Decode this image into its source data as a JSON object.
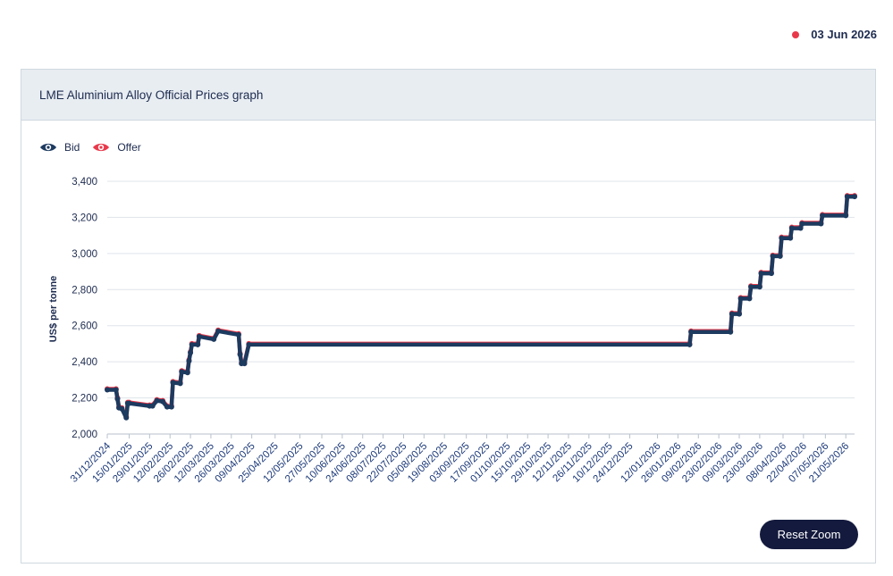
{
  "header_date": {
    "label": "03 Jun 2026",
    "dot_color": "#e8394a"
  },
  "card": {
    "title": "LME Aluminium Alloy Official Prices graph"
  },
  "legend": [
    {
      "label": "Bid",
      "icon": "eye-icon",
      "color": "#1d3a5f"
    },
    {
      "label": "Offer",
      "icon": "eye-icon",
      "color": "#e8394a"
    }
  ],
  "reset_zoom_label": "Reset Zoom",
  "chart_data": {
    "type": "line",
    "title": "",
    "xlabel": "",
    "ylabel": "US$ per tonne",
    "ylim": [
      2000,
      3400
    ],
    "yticks": [
      2000,
      2200,
      2400,
      2600,
      2800,
      3000,
      3200,
      3400
    ],
    "ytick_labels": [
      "2,000",
      "2,200",
      "2,400",
      "2,600",
      "2,800",
      "3,000",
      "3,200",
      "3,400"
    ],
    "x_tick_labels": [
      "31/12/2024",
      "15/01/2025",
      "29/01/2025",
      "12/02/2025",
      "26/02/2025",
      "12/03/2025",
      "26/03/2025",
      "09/04/2025",
      "25/04/2025",
      "12/05/2025",
      "27/05/2025",
      "10/06/2025",
      "24/06/2025",
      "08/07/2025",
      "22/07/2025",
      "05/08/2025",
      "19/08/2025",
      "03/09/2025",
      "17/09/2025",
      "01/10/2025",
      "15/10/2025",
      "29/10/2025",
      "12/11/2025",
      "26/11/2025",
      "10/12/2025",
      "24/12/2025",
      "12/01/2026",
      "26/01/2026",
      "09/02/2026",
      "23/02/2026",
      "09/03/2026",
      "23/03/2026",
      "08/04/2026",
      "22/04/2026",
      "07/05/2026",
      "21/05/2026"
    ],
    "grid": true,
    "legend_position": "top-left",
    "series": [
      {
        "name": "Bid",
        "color": "#1d3a5f",
        "points": [
          [
            "31/12/2024",
            2245
          ],
          [
            "06/01/2025",
            2245
          ],
          [
            "07/01/2025",
            2195
          ],
          [
            "08/01/2025",
            2145
          ],
          [
            "10/01/2025",
            2140
          ],
          [
            "13/01/2025",
            2090
          ],
          [
            "14/01/2025",
            2170
          ],
          [
            "15/01/2025",
            2170
          ],
          [
            "29/01/2025",
            2155
          ],
          [
            "31/01/2025",
            2155
          ],
          [
            "03/02/2025",
            2185
          ],
          [
            "07/02/2025",
            2180
          ],
          [
            "10/02/2025",
            2150
          ],
          [
            "13/02/2025",
            2150
          ],
          [
            "14/02/2025",
            2285
          ],
          [
            "19/02/2025",
            2280
          ],
          [
            "20/02/2025",
            2345
          ],
          [
            "24/02/2025",
            2340
          ],
          [
            "25/02/2025",
            2405
          ],
          [
            "26/02/2025",
            2450
          ],
          [
            "27/02/2025",
            2495
          ],
          [
            "03/03/2025",
            2495
          ],
          [
            "04/03/2025",
            2540
          ],
          [
            "14/03/2025",
            2525
          ],
          [
            "17/03/2025",
            2570
          ],
          [
            "31/03/2025",
            2550
          ],
          [
            "01/04/2025",
            2440
          ],
          [
            "02/04/2025",
            2390
          ],
          [
            "04/04/2025",
            2390
          ],
          [
            "07/04/2025",
            2495
          ],
          [
            "03/02/2026",
            2495
          ],
          [
            "04/02/2026",
            2565
          ],
          [
            "03/03/2026",
            2565
          ],
          [
            "04/03/2026",
            2665
          ],
          [
            "09/03/2026",
            2665
          ],
          [
            "10/03/2026",
            2750
          ],
          [
            "16/03/2026",
            2750
          ],
          [
            "17/03/2026",
            2815
          ],
          [
            "23/03/2026",
            2815
          ],
          [
            "24/03/2026",
            2890
          ],
          [
            "31/03/2026",
            2890
          ],
          [
            "01/04/2026",
            2985
          ],
          [
            "06/04/2026",
            2985
          ],
          [
            "07/04/2026",
            3085
          ],
          [
            "13/04/2026",
            3085
          ],
          [
            "14/04/2026",
            3140
          ],
          [
            "20/04/2026",
            3140
          ],
          [
            "21/04/2026",
            3165
          ],
          [
            "04/05/2026",
            3165
          ],
          [
            "05/05/2026",
            3210
          ],
          [
            "21/05/2026",
            3210
          ],
          [
            "22/05/2026",
            3315
          ],
          [
            "27/05/2026",
            3315
          ]
        ]
      },
      {
        "name": "Offer",
        "color": "#e8394a",
        "points": [
          [
            "31/12/2024",
            2250
          ],
          [
            "06/01/2025",
            2250
          ],
          [
            "07/01/2025",
            2200
          ],
          [
            "08/01/2025",
            2150
          ],
          [
            "10/01/2025",
            2145
          ],
          [
            "13/01/2025",
            2095
          ],
          [
            "14/01/2025",
            2175
          ],
          [
            "15/01/2025",
            2175
          ],
          [
            "29/01/2025",
            2160
          ],
          [
            "31/01/2025",
            2160
          ],
          [
            "03/02/2025",
            2190
          ],
          [
            "07/02/2025",
            2185
          ],
          [
            "10/02/2025",
            2155
          ],
          [
            "13/02/2025",
            2155
          ],
          [
            "14/02/2025",
            2290
          ],
          [
            "19/02/2025",
            2285
          ],
          [
            "20/02/2025",
            2350
          ],
          [
            "24/02/2025",
            2345
          ],
          [
            "25/02/2025",
            2410
          ],
          [
            "26/02/2025",
            2455
          ],
          [
            "27/02/2025",
            2500
          ],
          [
            "03/03/2025",
            2500
          ],
          [
            "04/03/2025",
            2545
          ],
          [
            "14/03/2025",
            2530
          ],
          [
            "17/03/2025",
            2575
          ],
          [
            "31/03/2025",
            2555
          ],
          [
            "01/04/2025",
            2445
          ],
          [
            "02/04/2025",
            2395
          ],
          [
            "04/04/2025",
            2395
          ],
          [
            "07/04/2025",
            2500
          ],
          [
            "03/02/2026",
            2500
          ],
          [
            "04/02/2026",
            2570
          ],
          [
            "03/03/2026",
            2570
          ],
          [
            "04/03/2026",
            2670
          ],
          [
            "09/03/2026",
            2670
          ],
          [
            "10/03/2026",
            2755
          ],
          [
            "16/03/2026",
            2755
          ],
          [
            "17/03/2026",
            2820
          ],
          [
            "23/03/2026",
            2820
          ],
          [
            "24/03/2026",
            2895
          ],
          [
            "31/03/2026",
            2895
          ],
          [
            "01/04/2026",
            2990
          ],
          [
            "06/04/2026",
            2990
          ],
          [
            "07/04/2026",
            3090
          ],
          [
            "13/04/2026",
            3090
          ],
          [
            "14/04/2026",
            3145
          ],
          [
            "20/04/2026",
            3145
          ],
          [
            "21/04/2026",
            3170
          ],
          [
            "04/05/2026",
            3170
          ],
          [
            "05/05/2026",
            3215
          ],
          [
            "21/05/2026",
            3215
          ],
          [
            "22/05/2026",
            3320
          ],
          [
            "27/05/2026",
            3320
          ]
        ]
      }
    ]
  }
}
